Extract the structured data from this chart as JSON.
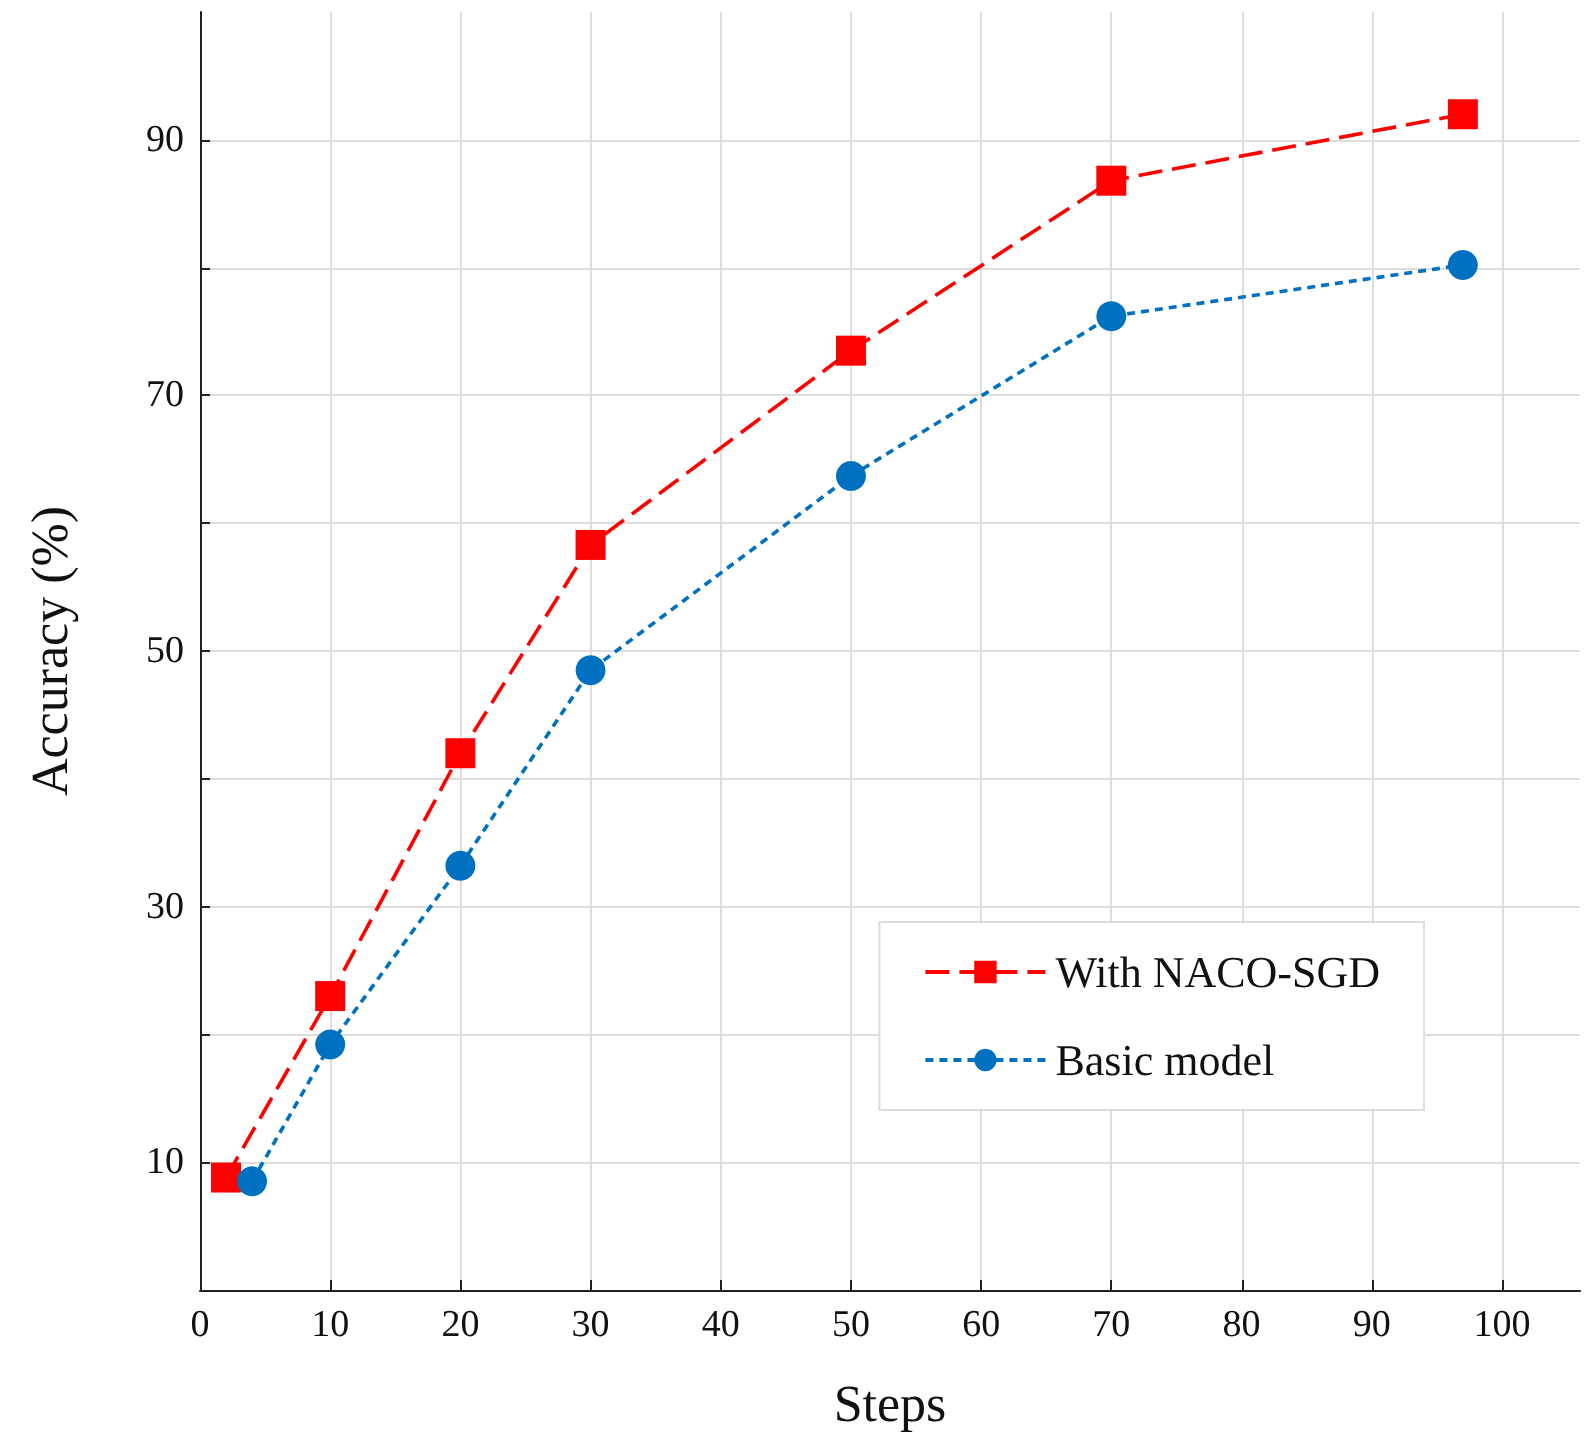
{
  "chart_data": {
    "type": "line",
    "xlabel": "Steps",
    "ylabel": "Accuracy (%)",
    "xlim": [
      0,
      106
    ],
    "xticks": [
      0,
      10,
      20,
      30,
      40,
      50,
      60,
      70,
      80,
      90,
      100
    ],
    "ylim": [
      0,
      100
    ],
    "yticks": [
      10,
      {
        "value": 20,
        "label": null
      },
      30,
      {
        "value": 40,
        "label": null
      },
      50,
      {
        "value": 60,
        "label": null
      },
      70,
      {
        "value": 80,
        "label": null
      },
      90
    ],
    "grid": true,
    "legend": "bottom right",
    "series": [
      {
        "name": "With NACO-SGD",
        "color": "#ff0000",
        "marker": "square",
        "line_style": "dashed",
        "x": [
          2,
          10,
          20,
          30,
          50,
          70,
          97
        ],
        "values": [
          8.8,
          23,
          42,
          58.3,
          73.5,
          86.8,
          92
        ]
      },
      {
        "name": "Basic model",
        "color": "#0070c0",
        "marker": "circle",
        "line_style": "dotted",
        "x": [
          4,
          10,
          20,
          30,
          50,
          70,
          97
        ],
        "values": [
          8.5,
          19.2,
          33.2,
          48.5,
          63.7,
          76.2,
          80.2
        ]
      }
    ]
  }
}
